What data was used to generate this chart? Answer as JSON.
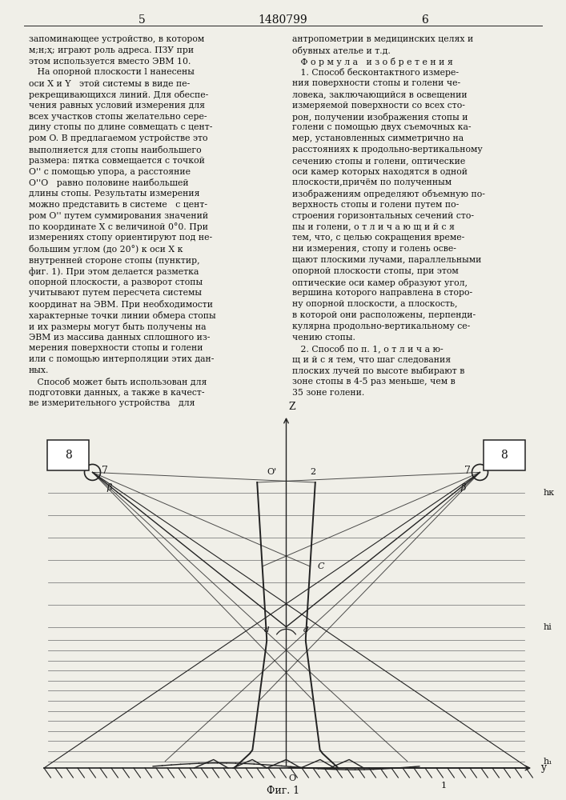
{
  "page_number_left": "5",
  "patent_number": "1480799",
  "page_number_right": "6",
  "background_color": "#f0efe8",
  "text_color": "#111111",
  "line_color": "#222222",
  "fig_caption": "Фиг. 1",
  "left_col_lines": [
    "запоминающее устройство, в котором",
    "м;н;ҳ; играют роль адреса. ПЗУ при",
    "этом используется вместо ЭВМ 10.",
    "   На опорной плоскости l нанесены",
    "оси X и Y   этой системы в виде пе-",
    "рекрещивающихся линий. Для обеспе-",
    "чения равных условий измерения для",
    "всех участков стопы желательно сере-",
    "дину стопы по длине совмещать с цент-",
    "ром O. В предлагаемом устройстве это",
    "выполняется для стопы наибольшего",
    "размера: пятка совмещается с точкой",
    "O'' с помощью упора, а расстояние",
    "O''O   равно половине наибольшей",
    "длины стопы. Результаты измерения",
    "можно представить в системе   с цент-",
    "ром O'' путем суммирования значений",
    "по координате X с величиной 0°0. При",
    "измерениях стопу ориентируют под не-",
    "большим углом (до 20°) к оси X к",
    "внутренней стороне стопы (пунктир,",
    "фиг. 1). При этом делается разметка",
    "опорной плоскости, а разворот стопы",
    "учитывают путем пересчета системы",
    "координат на ЭВМ. При необходимости",
    "характерные точки линии обмера стопы",
    "и их размеры могут быть получены на",
    "ЭВМ из массива данных сплошного из-",
    "мерения поверхности стопы и голени",
    "или с помощью интерполяции этих дан-",
    "ных.",
    "   Способ может быть использован для",
    "подготовки данных, а также в качест-",
    "ве измерительного устройства   для"
  ],
  "right_col_lines": [
    "антропометрии в медицинских целях и",
    "обувных ателье и т.д.",
    "   Ф о р м у л а   и з о б р е т е н и я",
    "   1. Способ бесконтактного измере-",
    "ния поверхности стопы и голени че-",
    "ловека, заключающийся в освещении",
    "измеряемой поверхности со всех сто-",
    "рон, получении изображения стопы и",
    "голени с помощью двух съемочных ка-",
    "мер, установленных симметрично на",
    "расстояниях к продольно-вертикальному",
    "сечению стопы и голени, оптические",
    "оси камер которых находятся в одной",
    "плоскости,причём по полученным",
    "изображениям определяют объемную по-",
    "верхность стопы и голени путем по-",
    "строения горизонтальных сечений сто-",
    "пы и голени, о т л и ч а ю щ и й с я",
    "тем, что, с целью сокращения време-",
    "ни измерения, стопу и голень осве-",
    "щают плоскими лучами, параллельными",
    "опорной плоскости стопы, при этом",
    "оптические оси камер образуют угол,",
    "вершина которого направлена в сторо-",
    "ну опорной плоскости, а плоскость,",
    "в которой они расположены, перпенди-",
    "кулярна продольно-вертикальному се-",
    "чению стопы.",
    "   2. Способ по п. 1, о т л и ч а ю-",
    "щ и й с я тем, что шаг следования",
    "плоских лучей по высоте выбирают в",
    "зоне стопы в 4-5 раз меньше, чем в",
    "35 зоне голени."
  ]
}
